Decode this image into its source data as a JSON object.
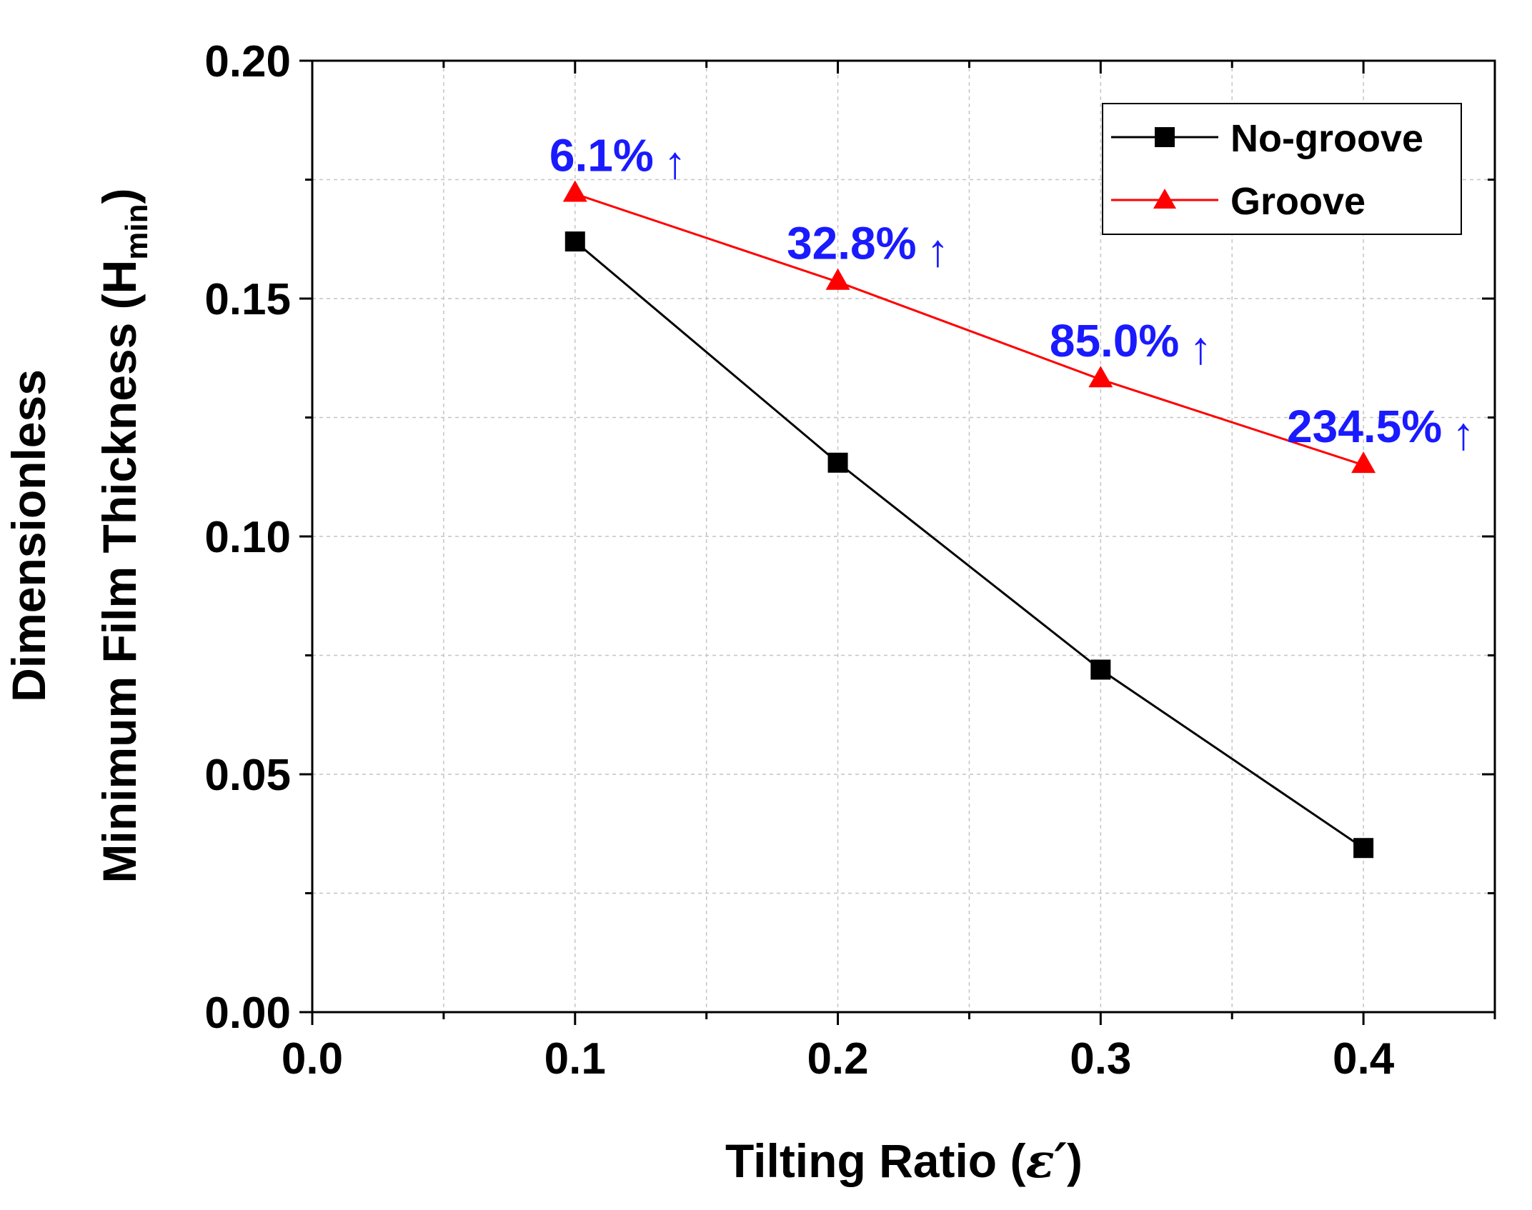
{
  "chart_data": {
    "type": "line",
    "title": "",
    "xlabel_prefix": "Tilting Ratio (",
    "xlabel_symbol": "ε′",
    "xlabel_suffix": ")",
    "ylabel_line1": "Dimensionless",
    "ylabel_line2_prefix": "Minimum Film Thickness (H",
    "ylabel_line2_sub": "min",
    "ylabel_line2_suffix": ")",
    "xlim": [
      0.0,
      0.45
    ],
    "ylim": [
      0.0,
      0.2
    ],
    "x_ticks": [
      0.0,
      0.1,
      0.2,
      0.3,
      0.4
    ],
    "x_tick_labels": [
      "0.0",
      "0.1",
      "0.2",
      "0.3",
      "0.4"
    ],
    "y_ticks": [
      0.0,
      0.05,
      0.1,
      0.15,
      0.2
    ],
    "y_tick_labels": [
      "0.00",
      "0.05",
      "0.10",
      "0.15",
      "0.20"
    ],
    "x_minor_ticks": [
      0.05,
      0.15,
      0.25,
      0.35,
      0.45
    ],
    "y_minor_ticks": [
      0.025,
      0.075,
      0.125,
      0.175
    ],
    "grid": true,
    "legend_position": "top-right",
    "x": [
      0.1,
      0.2,
      0.3,
      0.4
    ],
    "series": [
      {
        "name": "No-groove",
        "color": "#000000",
        "marker": "square",
        "values": [
          0.162,
          0.1155,
          0.072,
          0.0345
        ]
      },
      {
        "name": "Groove",
        "color": "#ff0000",
        "marker": "triangle",
        "values": [
          0.172,
          0.1535,
          0.133,
          0.115
        ]
      }
    ],
    "annotations": [
      {
        "x": 0.1,
        "text": "6.1%",
        "arrow": "↑"
      },
      {
        "x": 0.2,
        "text": "32.8%",
        "arrow": "↑"
      },
      {
        "x": 0.3,
        "text": "85.0%",
        "arrow": "↑"
      },
      {
        "x": 0.4,
        "text": "234.5%",
        "arrow": "↑"
      }
    ],
    "annotation_color": "#1a1aff"
  }
}
